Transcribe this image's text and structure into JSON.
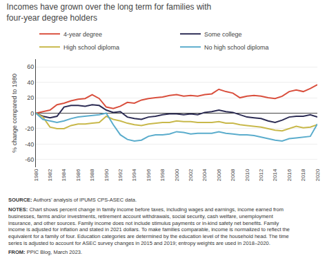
{
  "chart_data": {
    "type": "line",
    "title": "Incomes have grown over the long term for families with\nfour-year degree holders",
    "ylabel": "% change compared to 1980",
    "x": [
      1980,
      1981,
      1982,
      1983,
      1984,
      1985,
      1986,
      1987,
      1988,
      1989,
      1990,
      1991,
      1992,
      1993,
      1994,
      1995,
      1996,
      1997,
      1998,
      1999,
      2000,
      2001,
      2002,
      2003,
      2004,
      2005,
      2006,
      2007,
      2008,
      2009,
      2010,
      2011,
      2012,
      2013,
      2014,
      2015,
      2016,
      2017,
      2018,
      2019,
      2020
    ],
    "series": [
      {
        "name": "4-year degree",
        "color": "#d94f3d",
        "values": [
          0,
          2,
          4,
          11,
          13,
          16,
          18,
          19,
          24,
          19,
          8,
          6,
          9,
          14,
          13,
          17,
          19,
          20,
          21,
          23,
          24,
          22,
          23,
          22,
          24,
          25,
          31,
          28,
          26,
          20,
          22,
          23,
          22,
          20,
          19,
          22,
          28,
          30,
          28,
          32,
          37
        ]
      },
      {
        "name": "Some college",
        "color": "#2c2c54",
        "values": [
          0,
          -4,
          -6,
          -4,
          8,
          10,
          10,
          9,
          11,
          10,
          4,
          1,
          2,
          -5,
          -7,
          -8,
          -5,
          -4,
          -2,
          -1,
          -1,
          -2,
          -1,
          -2,
          1,
          2,
          4,
          2,
          1,
          -2,
          -5,
          -6,
          -7,
          -10,
          -12,
          -9,
          -5,
          -4,
          -4,
          -2,
          -5
        ]
      },
      {
        "name": "High school diploma",
        "color": "#c8b84a",
        "values": [
          0,
          -5,
          -18,
          -20,
          -20,
          -16,
          -14,
          -14,
          -13,
          -12,
          -4,
          -8,
          -10,
          -13,
          -15,
          -16,
          -14,
          -13,
          -12,
          -12,
          -10,
          -11,
          -11,
          -12,
          -12,
          -12,
          -11,
          -13,
          -13,
          -15,
          -16,
          -17,
          -18,
          -20,
          -22,
          -23,
          -20,
          -17,
          -19,
          -18,
          -15
        ]
      },
      {
        "name": "No high school diploma",
        "color": "#5aaccc",
        "values": [
          0,
          -8,
          -10,
          -12,
          -10,
          -7,
          -5,
          -4,
          -3,
          -2,
          0,
          -15,
          -28,
          -34,
          -36,
          -35,
          -30,
          -28,
          -28,
          -27,
          -24,
          -25,
          -27,
          -26,
          -26,
          -26,
          -24,
          -26,
          -27,
          -28,
          -28,
          -29,
          -31,
          -33,
          -35,
          -36,
          -33,
          -32,
          -31,
          -30,
          -14
        ]
      }
    ],
    "xlim": [
      1980,
      2020
    ],
    "xticks": [
      1980,
      1982,
      1984,
      1986,
      1988,
      1990,
      1992,
      1994,
      1996,
      1998,
      2000,
      2002,
      2004,
      2006,
      2008,
      2010,
      2012,
      2014,
      2016,
      2018,
      2020
    ],
    "ylim": [
      -70,
      70
    ],
    "yticks": [
      -60,
      -40,
      -20,
      0,
      20,
      40,
      60
    ],
    "grid": true,
    "legend": "top",
    "annotations": [
      "SOURCE: Authors’ analysis of IPUMS CPS-ASEC data.",
      "NOTES: Chart shows percent change in family income before taxes, including wages and earnings, income earned from businesses, farms and/or investments, retirement account withdrawals, social security, cash welfare, unemployment insurance, and other sources. Family income does not include stimulus payments or in-kind safety net benefits. Family income is adjusted for inflation and stated in 2021 dollars. To make families comparable, income is normalized to reflect the equivalent for a family of four. Education categories are determined by the education level of the household head. The time series is adjusted to account for ASEC survey changes in 2015 and 2019; entropy weights are used in 2018–2020.",
      "FROM: PPIC Blog, March 2023."
    ]
  }
}
